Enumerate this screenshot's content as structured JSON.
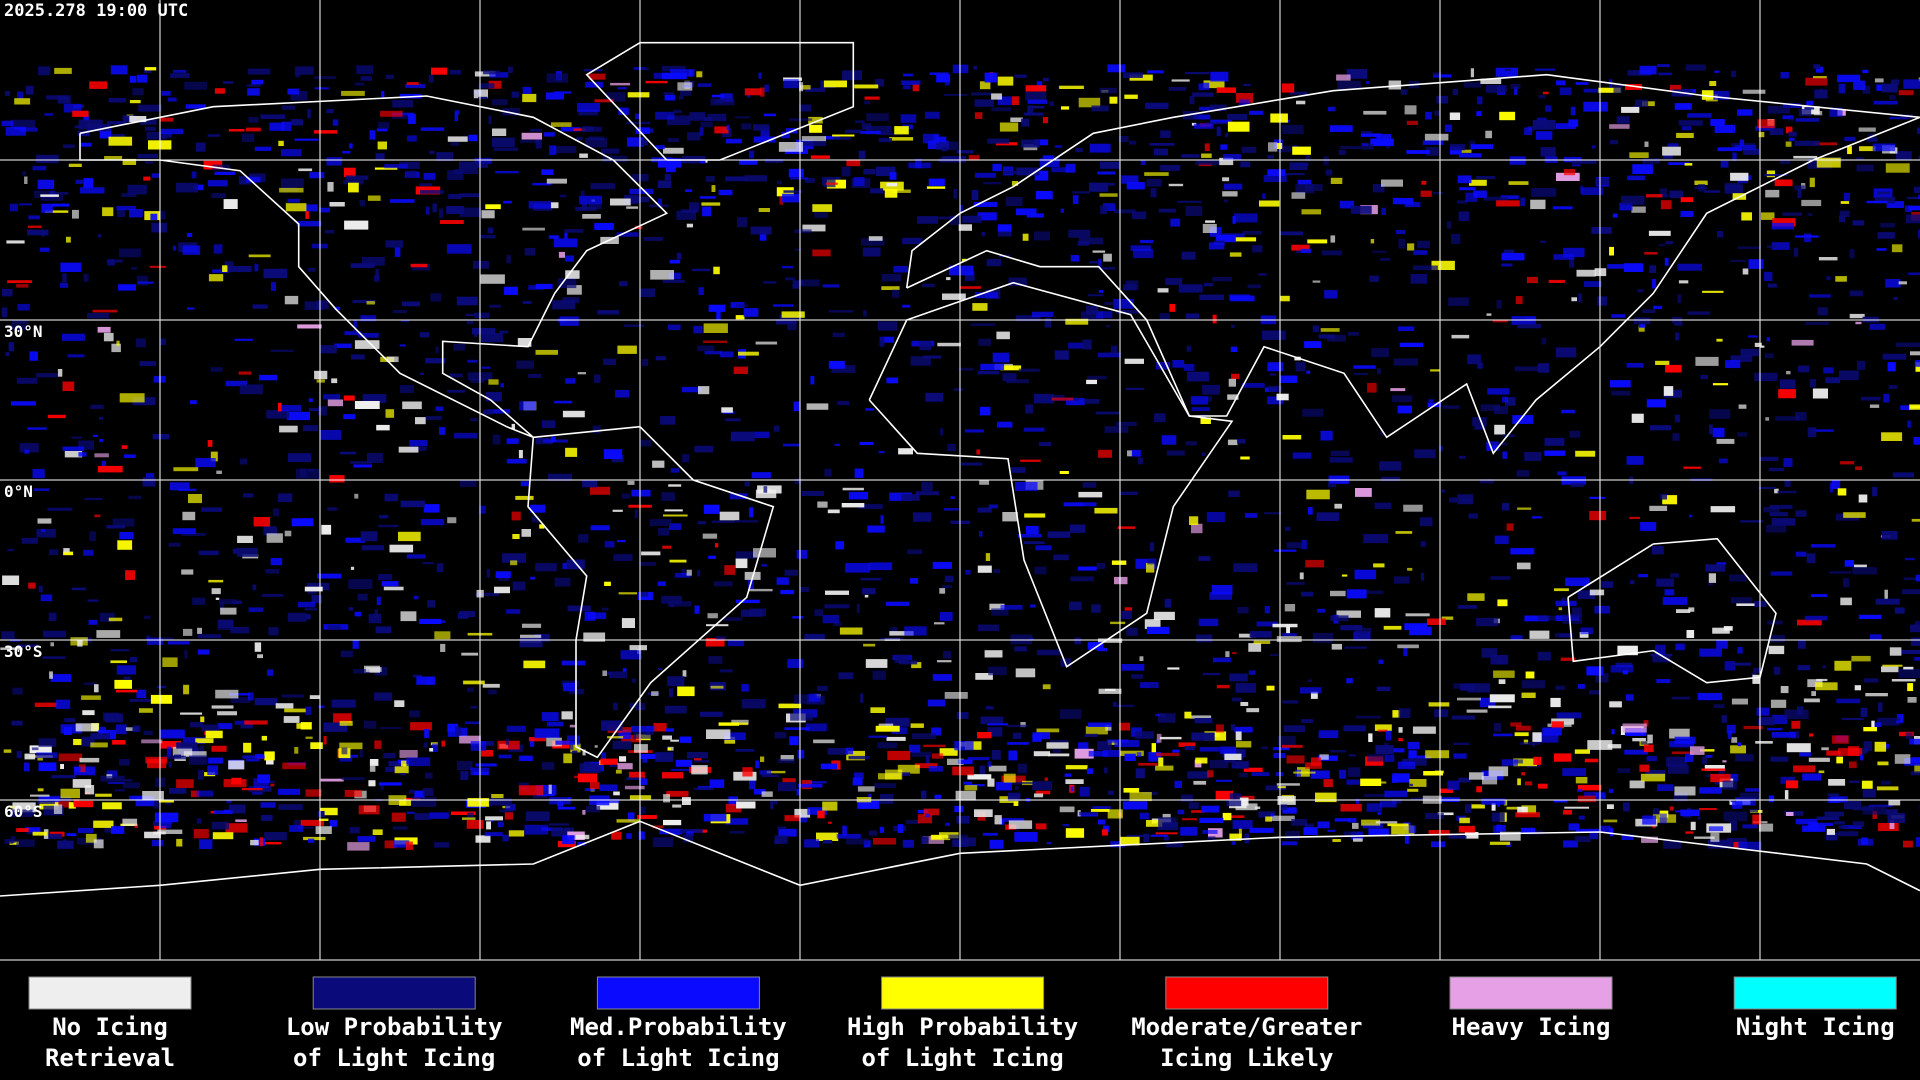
{
  "header": {
    "timestamp": "2025.278 19:00 UTC"
  },
  "map": {
    "latitude_labels": [
      "30°N",
      "0°N",
      "30°S",
      "60°S"
    ]
  },
  "legend": {
    "items": [
      {
        "label_lines": [
          "No Icing",
          "Retrieval"
        ],
        "color": "#eeeeee"
      },
      {
        "label_lines": [
          "Low Probability",
          "of Light Icing"
        ],
        "color": "#0a0a7a"
      },
      {
        "label_lines": [
          "Med.Probability",
          "of Light Icing"
        ],
        "color": "#0a0aff"
      },
      {
        "label_lines": [
          "High Probability",
          "of Light Icing"
        ],
        "color": "#ffff00"
      },
      {
        "label_lines": [
          "Moderate/Greater",
          "Icing Likely"
        ],
        "color": "#ff0000"
      },
      {
        "label_lines": [
          "Heavy Icing"
        ],
        "color": "#e6a0e6"
      },
      {
        "label_lines": [
          "Night Icing"
        ],
        "color": "#00ffff"
      }
    ]
  }
}
